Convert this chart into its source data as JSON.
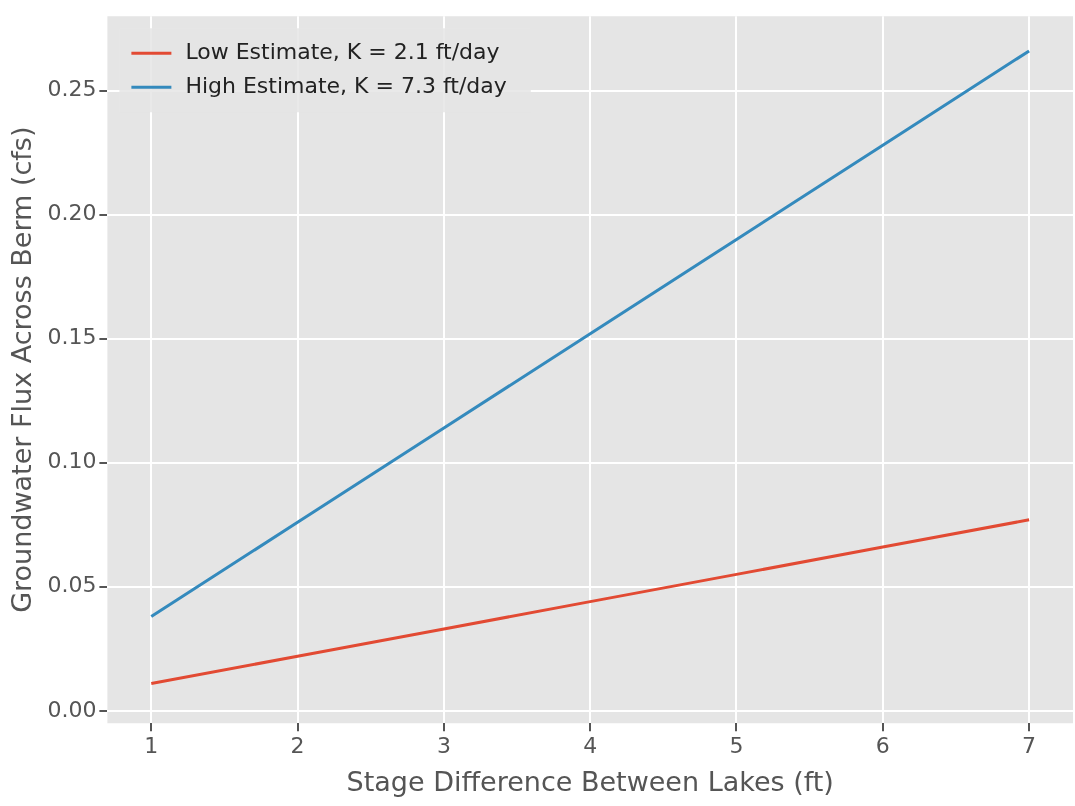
{
  "chart_data": {
    "type": "line",
    "xlabel": "Stage Difference Between Lakes (ft)",
    "ylabel": "Groundwater Flux Across Berm (cfs)",
    "x": [
      1,
      2,
      3,
      4,
      5,
      6,
      7
    ],
    "series": [
      {
        "name": "Low Estimate, K = 2.1 ft/day",
        "color": "#e24a33",
        "values": [
          0.011,
          0.022,
          0.033,
          0.044,
          0.055,
          0.066,
          0.077
        ]
      },
      {
        "name": "High Estimate, K = 7.3 ft/day",
        "color": "#348abd",
        "values": [
          0.038,
          0.076,
          0.114,
          0.152,
          0.19,
          0.228,
          0.266
        ]
      }
    ],
    "xlim": [
      0.7,
      7.3
    ],
    "xticks": [
      1,
      2,
      3,
      4,
      5,
      6,
      7
    ],
    "ylim": [
      -0.005,
      0.28
    ],
    "yticks": [
      {
        "value": 0,
        "label": "0.00"
      },
      {
        "value": 0.05,
        "label": "0.05"
      },
      {
        "value": 0.1,
        "label": "0.10"
      },
      {
        "value": 0.15,
        "label": "0.15"
      },
      {
        "value": 0.2,
        "label": "0.20"
      },
      {
        "value": 0.25,
        "label": "0.25"
      }
    ],
    "grid": true,
    "legend": "top left",
    "marker": "none",
    "line_style": "solid"
  }
}
